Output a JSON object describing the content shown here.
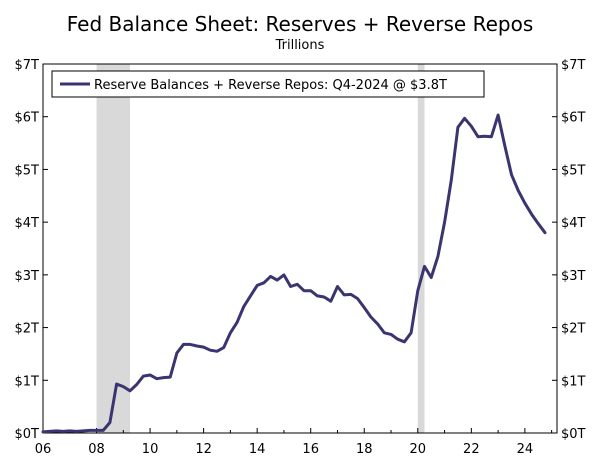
{
  "chart_data": {
    "type": "line",
    "title": "Fed Balance Sheet: Reserves + Reverse Repos",
    "subtitle": "Trillions",
    "xlabel": "",
    "ylabel": "",
    "xlim": [
      2006,
      2025.2
    ],
    "ylim": [
      0,
      7
    ],
    "x_tick_values": [
      2006,
      2008,
      2010,
      2012,
      2014,
      2016,
      2018,
      2020,
      2022,
      2024
    ],
    "x_tick_labels": [
      "06",
      "08",
      "10",
      "12",
      "14",
      "16",
      "18",
      "20",
      "22",
      "24"
    ],
    "y_tick_values": [
      0,
      1,
      2,
      3,
      4,
      5,
      6,
      7
    ],
    "y_tick_labels": [
      "$0T",
      "$1T",
      "$2T",
      "$3T",
      "$4T",
      "$5T",
      "$6T",
      "$7T"
    ],
    "recessions": [
      [
        2008.0,
        2009.25
      ],
      [
        2020.0,
        2020.25
      ]
    ],
    "legend_position": "top-left",
    "series": [
      {
        "name": "Reserve Balances + Reverse Repos: Q4-2024 @ $3.8T",
        "color": "#3a3570",
        "x": [
          2006.0,
          2006.25,
          2006.5,
          2006.75,
          2007.0,
          2007.25,
          2007.5,
          2007.75,
          2008.0,
          2008.25,
          2008.5,
          2008.75,
          2009.0,
          2009.25,
          2009.5,
          2009.75,
          2010.0,
          2010.25,
          2010.5,
          2010.75,
          2011.0,
          2011.25,
          2011.5,
          2011.75,
          2012.0,
          2012.25,
          2012.5,
          2012.75,
          2013.0,
          2013.25,
          2013.5,
          2013.75,
          2014.0,
          2014.25,
          2014.5,
          2014.75,
          2015.0,
          2015.25,
          2015.5,
          2015.75,
          2016.0,
          2016.25,
          2016.5,
          2016.75,
          2017.0,
          2017.25,
          2017.5,
          2017.75,
          2018.0,
          2018.25,
          2018.5,
          2018.75,
          2019.0,
          2019.25,
          2019.5,
          2019.75,
          2020.0,
          2020.25,
          2020.5,
          2020.75,
          2021.0,
          2021.25,
          2021.5,
          2021.75,
          2022.0,
          2022.25,
          2022.5,
          2022.75,
          2023.0,
          2023.25,
          2023.5,
          2023.75,
          2024.0,
          2024.25,
          2024.5,
          2024.75
        ],
        "values": [
          0.02,
          0.03,
          0.04,
          0.03,
          0.04,
          0.03,
          0.04,
          0.05,
          0.05,
          0.05,
          0.2,
          0.93,
          0.88,
          0.8,
          0.92,
          1.08,
          1.1,
          1.03,
          1.05,
          1.06,
          1.52,
          1.68,
          1.68,
          1.65,
          1.63,
          1.57,
          1.55,
          1.62,
          1.9,
          2.1,
          2.4,
          2.6,
          2.8,
          2.85,
          2.97,
          2.9,
          3.0,
          2.78,
          2.82,
          2.7,
          2.7,
          2.6,
          2.58,
          2.5,
          2.78,
          2.62,
          2.63,
          2.55,
          2.38,
          2.2,
          2.07,
          1.9,
          1.87,
          1.78,
          1.73,
          1.9,
          2.7,
          3.16,
          2.95,
          3.35,
          4.0,
          4.8,
          5.8,
          5.97,
          5.82,
          5.62,
          5.63,
          5.62,
          6.03,
          5.45,
          4.9,
          4.6,
          4.36,
          4.15,
          3.97,
          3.8
        ]
      }
    ]
  }
}
